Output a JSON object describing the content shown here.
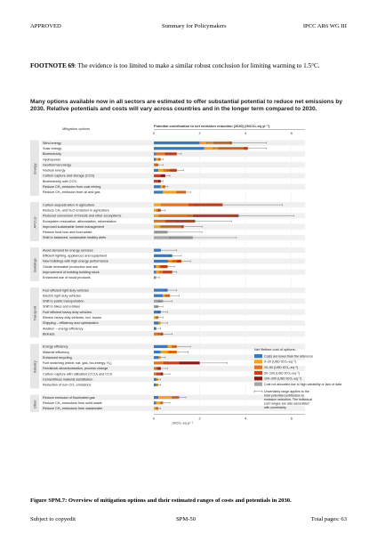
{
  "header": {
    "left": "APPROVED",
    "center": "Summary for Policymakers",
    "right": "IPCC AR6 WG III"
  },
  "footnote": {
    "label": "FOOTNOTE 69",
    "text": ": The evidence is too limited to make a similar robust conclusion for limiting warming to 1.5°C."
  },
  "figure": {
    "title": "Many options available now in all sectors are estimated to offer substantial potential to reduce net emissions by 2030. Relative potentials and costs will vary across countries and in the longer term compared to 2030.",
    "options_header": "Mitigation options",
    "axis_title": "Potential contribution to net emission reduction (2030) (GtCO₂-eq yr⁻¹)",
    "axis_bottom_label": "GtCO₂-eq yr⁻¹",
    "ticks": [
      "0",
      "2",
      "4",
      "6"
    ],
    "legend": {
      "title": "Net lifetime cost of options:",
      "items": [
        {
          "label": "Costs are lower than the reference",
          "color": "#3a78bf"
        },
        {
          "label": "0–20 (USD tCO₂-eq⁻¹)",
          "color": "#f2a51c"
        },
        {
          "label": "20–50 (USD tCO₂-eq⁻¹)",
          "color": "#e07420"
        },
        {
          "label": "50–100 (USD tCO₂-eq⁻¹)",
          "color": "#c8421c"
        },
        {
          "label": "100–200 (USD tCO₂-eq⁻¹)",
          "color": "#8c1a14"
        },
        {
          "label": "Cost not allocated due to high variability or lack of data",
          "color": "#a6a6a6"
        }
      ],
      "note": "Uncertainty range applies to the total potential contribution to emission reduction. The individual cost ranges are also associated with uncertainty"
    }
  },
  "chart_data": {
    "type": "bar",
    "xlabel": "GtCO₂-eq yr⁻¹",
    "xlim": [
      0,
      6.6
    ],
    "cost_categories": [
      "Costs are lower than the reference",
      "0–20 (USD tCO₂-eq⁻¹)",
      "20–50 (USD tCO₂-eq⁻¹)",
      "50–100 (USD tCO₂-eq⁻¹)",
      "100–200 (USD tCO₂-eq⁻¹)",
      "Cost not allocated due to high variability or lack of data"
    ],
    "groups": [
      {
        "sector": "Energy",
        "options": [
          {
            "name": "Wind energy",
            "segments": [
              2.0,
              0.6,
              0.7,
              0.1,
              0,
              0
            ],
            "err": [
              2.3,
              4.9
            ]
          },
          {
            "name": "Solar energy",
            "segments": [
              2.2,
              0.6,
              1.1,
              0.2,
              0,
              0
            ],
            "err": [
              2.6,
              4.9
            ]
          },
          {
            "name": "Bioelectricity",
            "segments": [
              0.1,
              0,
              0.4,
              0.5,
              0,
              0
            ],
            "err": [
              0.5,
              1.2
            ]
          },
          {
            "name": "Hydropower",
            "segments": [
              0.1,
              0.1,
              0.1,
              0,
              0,
              0
            ],
            "err": [
              0.2,
              0.4
            ]
          },
          {
            "name": "Geothermal energy",
            "segments": [
              0,
              0,
              0.2,
              0,
              0,
              0
            ],
            "err": [
              0.1,
              0.4
            ]
          },
          {
            "name": "Nuclear energy",
            "segments": [
              0.2,
              0.2,
              0.3,
              0.3,
              0,
              0
            ],
            "err": [
              0.6,
              1.3
            ]
          },
          {
            "name": "Carbon capture and storage (CCS)",
            "segments": [
              0,
              0,
              0,
              0.3,
              0.2,
              0
            ],
            "err": [
              0.3,
              0.7
            ]
          },
          {
            "name": "Bioelectricity with CCS",
            "segments": [
              0,
              0,
              0,
              0.2,
              0.1,
              0
            ],
            "err": [
              0.2,
              0.4
            ]
          },
          {
            "name": "Reduce CH₄ emission from coal mining",
            "segments": [
              0.3,
              0.1,
              0.1,
              0,
              0,
              0
            ],
            "err": [
              0.4,
              0.6
            ]
          },
          {
            "name": "Reduce CH₄ emission from oil and gas",
            "segments": [
              0.4,
              0.6,
              0.4,
              0,
              0,
              0
            ],
            "err": [
              1.0,
              1.6
            ]
          }
        ]
      },
      {
        "sector": "AFOLU",
        "options": [
          {
            "name": "Carbon sequestration in agriculture",
            "segments": [
              0,
              0.3,
              1.2,
              1.5,
              0,
              0
            ],
            "err": [
              1.8,
              5.6
            ]
          },
          {
            "name": "Reduce CH₄ and N₂O emission in agriculture",
            "segments": [
              0,
              0.1,
              0.1,
              0.1,
              0,
              0
            ],
            "err": [
              0.2,
              0.5
            ]
          },
          {
            "name": "Reduced conversion of forests and other ecosystems",
            "segments": [
              0,
              0.2,
              1.5,
              2.0,
              0,
              0
            ],
            "err": [
              1.5,
              6.1
            ]
          },
          {
            "name": "Ecosystem restoration, afforestation, reforestation",
            "segments": [
              0,
              0,
              0.5,
              1.3,
              0,
              0
            ],
            "err": [
              1.0,
              3.4
            ]
          },
          {
            "name": "Improved sustainable forest management",
            "segments": [
              0,
              0.3,
              0.9,
              0.1,
              0,
              0
            ],
            "err": [
              0.3,
              2.1
            ]
          },
          {
            "name": "Reduce food loss and food waste",
            "segments": [
              0,
              0,
              0,
              0,
              0,
              0.6
            ],
            "err": [
              0.1,
              2.1
            ]
          },
          {
            "name": "Shift to balanced, sustainable healthy diets",
            "segments": [
              0,
              0,
              0,
              0,
              0,
              1.7
            ],
            "err": [
              0.7,
              3.6
            ]
          }
        ]
      },
      {
        "sector": "Buildings",
        "options": [
          {
            "name": "Avoid demand for energy services",
            "segments": [
              0.3,
              0,
              0,
              0,
              0,
              0
            ],
            "err": [
              0.3,
              1.0
            ]
          },
          {
            "name": "Efficient lighting, appliances and equipment",
            "segments": [
              0.8,
              0,
              0,
              0,
              0,
              0
            ],
            "err": [
              0.7,
              1.2
            ]
          },
          {
            "name": "New buildings with high energy performance",
            "segments": [
              0.6,
              0.2,
              0.2,
              0.2,
              0,
              0
            ],
            "err": [
              0.6,
              1.6
            ]
          },
          {
            "name": "Onsite renewable production and use",
            "segments": [
              0.1,
              0.1,
              0.1,
              0.3,
              0,
              0
            ],
            "err": [
              0.3,
              0.9
            ]
          },
          {
            "name": "Improvement of existing building stock",
            "segments": [
              0.1,
              0.1,
              0.2,
              0.4,
              0,
              0
            ],
            "err": [
              0.4,
              1.0
            ]
          },
          {
            "name": "Enhanced use of wood products",
            "segments": [
              0,
              0,
              0,
              0,
              0,
              0.1
            ],
            "err": [
              0.03,
              0.25
            ]
          }
        ]
      },
      {
        "sector": "Transport",
        "options": [
          {
            "name": "Fuel efficient light duty vehicles",
            "segments": [
              0.6,
              0,
              0,
              0,
              0,
              0
            ],
            "err": [
              0.5,
              1.0
            ]
          },
          {
            "name": "Electric light duty vehicles",
            "segments": [
              0.4,
              0.1,
              0.2,
              0,
              0,
              0
            ],
            "err": [
              0.5,
              1.1
            ]
          },
          {
            "name": "Shift to public transportation",
            "segments": [
              0,
              0,
              0,
              0,
              0,
              0.4
            ],
            "err": [
              0.2,
              0.8
            ]
          },
          {
            "name": "Shift to bikes and e-bikes",
            "segments": [
              0,
              0,
              0,
              0,
              0,
              0.2
            ],
            "err": [
              0.1,
              0.4
            ]
          },
          {
            "name": "Fuel efficient heavy duty vehicles",
            "segments": [
              0.3,
              0,
              0,
              0,
              0,
              0
            ],
            "err": [
              0.2,
              0.6
            ]
          },
          {
            "name": "Electric heavy duty vehicles, incl. buses",
            "segments": [
              0,
              0.1,
              0.1,
              0,
              0,
              0
            ],
            "err": [
              0.1,
              0.4
            ]
          },
          {
            "name": "Shipping – efficiency and optimization",
            "segments": [
              0.2,
              0.1,
              0,
              0,
              0,
              0
            ],
            "err": [
              0.2,
              0.6
            ]
          },
          {
            "name": "Aviation – energy efficiency",
            "segments": [
              0.1,
              0,
              0,
              0,
              0,
              0
            ],
            "err": [
              0.05,
              0.3
            ]
          },
          {
            "name": "Biofuels",
            "segments": [
              0,
              0,
              0.3,
              0.1,
              0,
              0
            ],
            "err": [
              0.2,
              0.8
            ]
          }
        ]
      },
      {
        "sector": "Industry",
        "options": [
          {
            "name": "Energy efficiency",
            "segments": [
              0.6,
              0.2,
              0.2,
              0,
              0,
              0
            ],
            "err": [
              0.8,
              1.6
            ]
          },
          {
            "name": "Material efficiency",
            "segments": [
              0.3,
              0.3,
              0.4,
              0,
              0,
              0
            ],
            "err": [
              0.7,
              1.5
            ]
          },
          {
            "name": "Enhanced recycling",
            "segments": [
              0.2,
              0.1,
              0,
              0,
              0,
              0
            ],
            "err": [
              0.2,
              0.5
            ]
          },
          {
            "name": "Fuel switching (electr, nat. gas, bio-energy, H₂)",
            "segments": [
              0,
              0,
              0.4,
              0.7,
              0.9,
              0
            ],
            "err": [
              1.2,
              3.2
            ]
          },
          {
            "name": "Feedstock decarbonisation, process change",
            "segments": [
              0,
              0,
              0.1,
              0.1,
              0.1,
              0
            ],
            "err": [
              0.2,
              0.6
            ]
          },
          {
            "name": "Carbon capture with utilisation (CCU) and CCS",
            "segments": [
              0,
              0,
              0.1,
              0.2,
              0.1,
              0
            ],
            "err": [
              0.3,
              0.7
            ]
          },
          {
            "name": "Cementitious material substitution",
            "segments": [
              0.1,
              0.1,
              0,
              0,
              0,
              0
            ],
            "err": [
              0.1,
              0.3
            ]
          },
          {
            "name": "Reduction of non-CO₂ emissions",
            "segments": [
              0.1,
              0.1,
              0,
              0,
              0,
              0
            ],
            "err": [
              0.1,
              0.3
            ]
          }
        ]
      },
      {
        "sector": "Other",
        "options": [
          {
            "name": "Reduce emission of fluorinated gas",
            "segments": [
              0.2,
              0.6,
              0.3,
              0,
              0,
              0
            ],
            "err": [
              0.8,
              1.4
            ]
          },
          {
            "name": "Reduce CH₄ emissions from solid waste",
            "segments": [
              0.1,
              0.2,
              0.1,
              0,
              0,
              0
            ],
            "err": [
              0.3,
              0.7
            ]
          },
          {
            "name": "Reduce CH₄ emissions from wastewater",
            "segments": [
              0,
              0.1,
              0.1,
              0,
              0,
              0
            ],
            "err": [
              0.1,
              0.3
            ]
          }
        ]
      }
    ]
  },
  "caption": "Figure SPM.7: Overview of mitigation options and their estimated ranges of costs and potentials in 2030.",
  "footer": {
    "left": "Subject to copyedit",
    "center": "SPM-50",
    "right": "Total pages: 63"
  }
}
